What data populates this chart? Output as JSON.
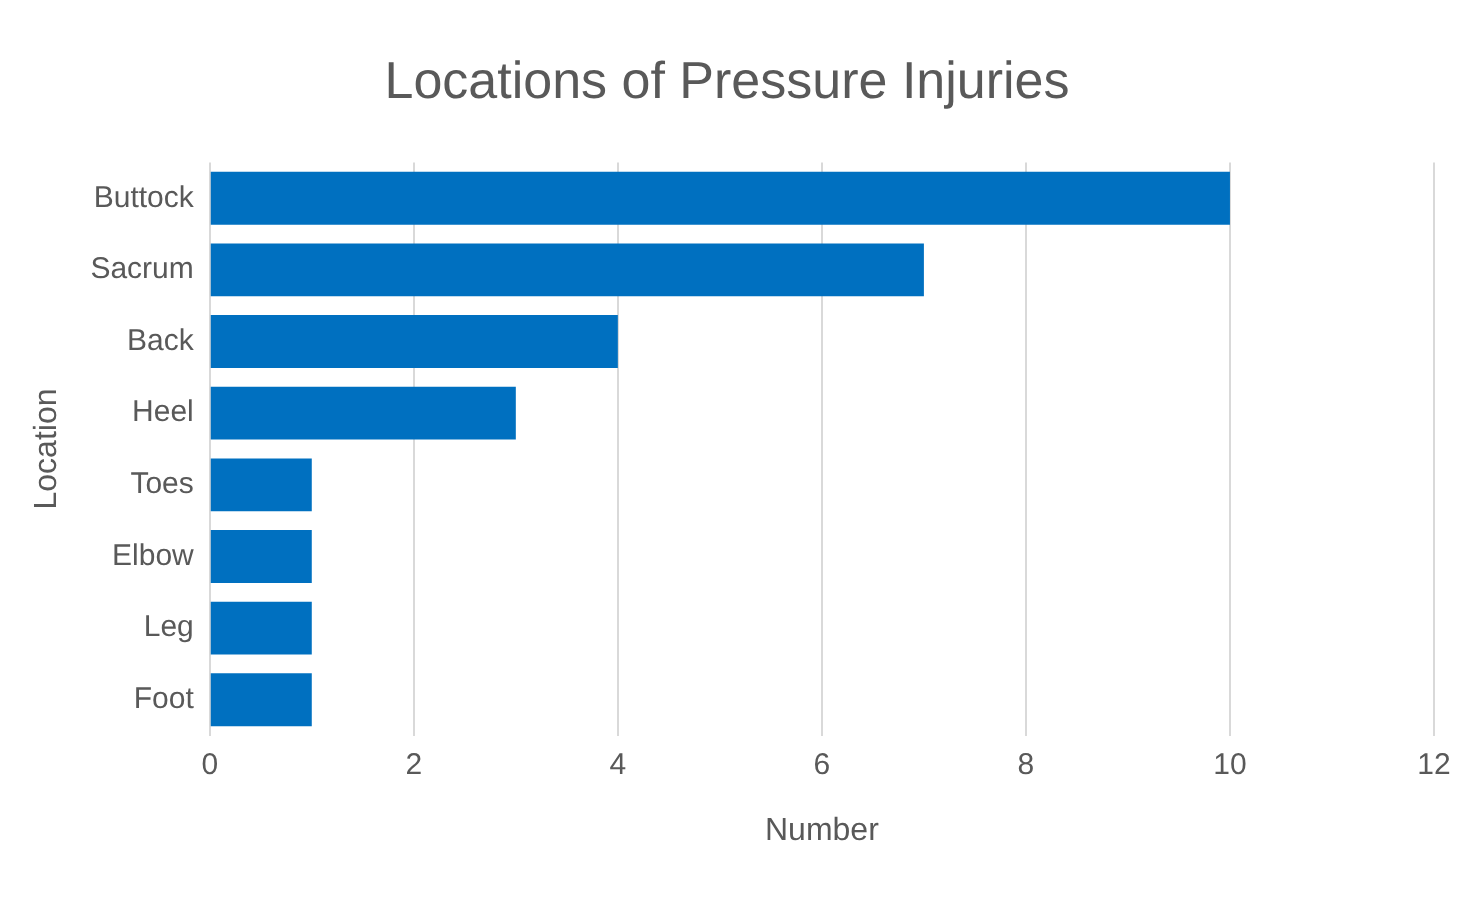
{
  "chart_data": {
    "type": "bar",
    "orientation": "horizontal",
    "title": "Locations of Pressure Injuries",
    "xlabel": "Number",
    "ylabel": "Location",
    "categories": [
      "Buttock",
      "Sacrum",
      "Back",
      "Heel",
      "Toes",
      "Elbow",
      "Leg",
      "Foot"
    ],
    "values": [
      10,
      7,
      4,
      3,
      1,
      1,
      1,
      1
    ],
    "color": "#0070c0",
    "xlim": [
      0,
      12
    ],
    "xticks": [
      0,
      2,
      4,
      6,
      8,
      10,
      12
    ],
    "grid": "x"
  }
}
